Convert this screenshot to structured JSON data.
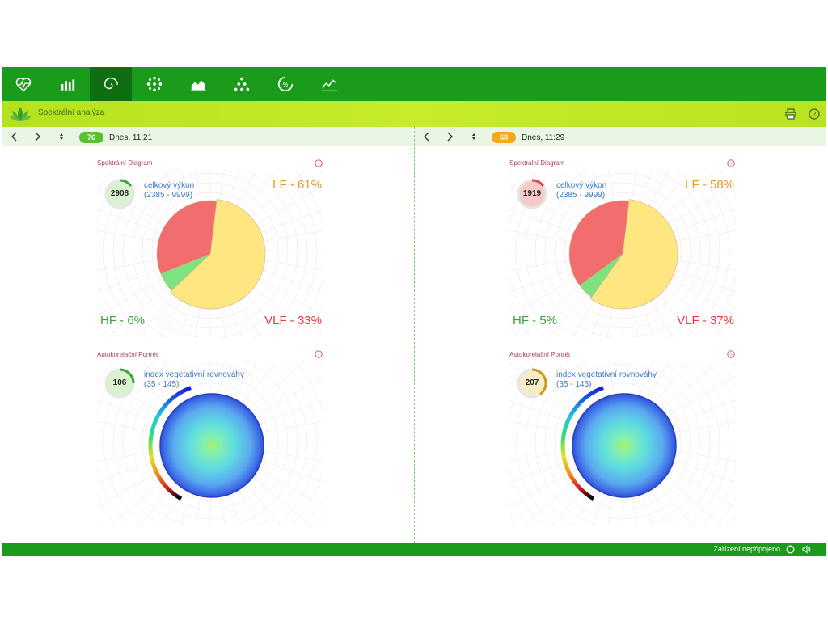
{
  "toolbar": {
    "tabs": [
      {
        "icon": "heartbeat-icon"
      },
      {
        "icon": "bar-chart-icon"
      },
      {
        "icon": "spiral-icon",
        "active": true
      },
      {
        "icon": "dots-cluster-icon"
      },
      {
        "icon": "area-chart-icon"
      },
      {
        "icon": "triangle-dots-icon"
      },
      {
        "icon": "percent-circle-icon"
      },
      {
        "icon": "line-chart-icon"
      }
    ]
  },
  "subheader": {
    "title": "Spektrální analýza",
    "icons": [
      "lotus-logo-icon",
      "print-icon",
      "help-icon"
    ]
  },
  "colors": {
    "toolbar_green": "#1a9b1a",
    "active_tab": "#0d6e12",
    "lf_yellow": "#ffe680",
    "vlf_red": "#f26d6d",
    "hf_green": "#7ee37e",
    "badge_green": "#57c22a",
    "badge_orange": "#f6a81d"
  },
  "panels": [
    {
      "badge": "76",
      "badge_color": "#57c22a",
      "date": "Dnes, 11:21",
      "spectral": {
        "title": "Spektrální Diagram",
        "gauge_value": "2908",
        "gauge_fraction": 0.15,
        "gauge_color": "#3aa43a",
        "gauge_fill": "#d9f3d0",
        "metric_name": "celkový výkon",
        "metric_range": "(2385 - 9999)",
        "lf_label": "LF - 61%",
        "hf_label": "HF - 6%",
        "vlf_label": "VLF - 33%",
        "lf": 61,
        "hf": 6,
        "vlf": 33
      },
      "autocorr": {
        "title": "Autokorelační Portrét",
        "gauge_value": "106",
        "gauge_fraction": 0.25,
        "gauge_color": "#3aa43a",
        "gauge_fill": "#d9f3d0",
        "metric_name": "index vegetativní rovnováhy",
        "metric_range": "(35 - 145)"
      }
    },
    {
      "badge": "58",
      "badge_color": "#f6a81d",
      "date": "Dnes, 11:29",
      "spectral": {
        "title": "Spektrální Diagram",
        "gauge_value": "1919",
        "gauge_fraction": 0.15,
        "gauge_color": "#d94a4a",
        "gauge_fill": "#f7c9c9",
        "metric_name": "celkový výkon",
        "metric_range": "(2385 - 9999)",
        "lf_label": "LF - 58%",
        "hf_label": "HF - 5%",
        "vlf_label": "VLF - 37%",
        "lf": 58,
        "hf": 5,
        "vlf": 37
      },
      "autocorr": {
        "title": "Autokorelační Portrét",
        "gauge_value": "207",
        "gauge_fraction": 0.4,
        "gauge_color": "#c99a1e",
        "gauge_fill": "#f6ecc6",
        "metric_name": "index vegetativní rovnováhy",
        "metric_range": "(35 - 145)"
      }
    }
  ],
  "footer": {
    "status": "Zařízení nepřipojeno",
    "icons": [
      "connection-circle-icon",
      "speaker-icon"
    ]
  }
}
